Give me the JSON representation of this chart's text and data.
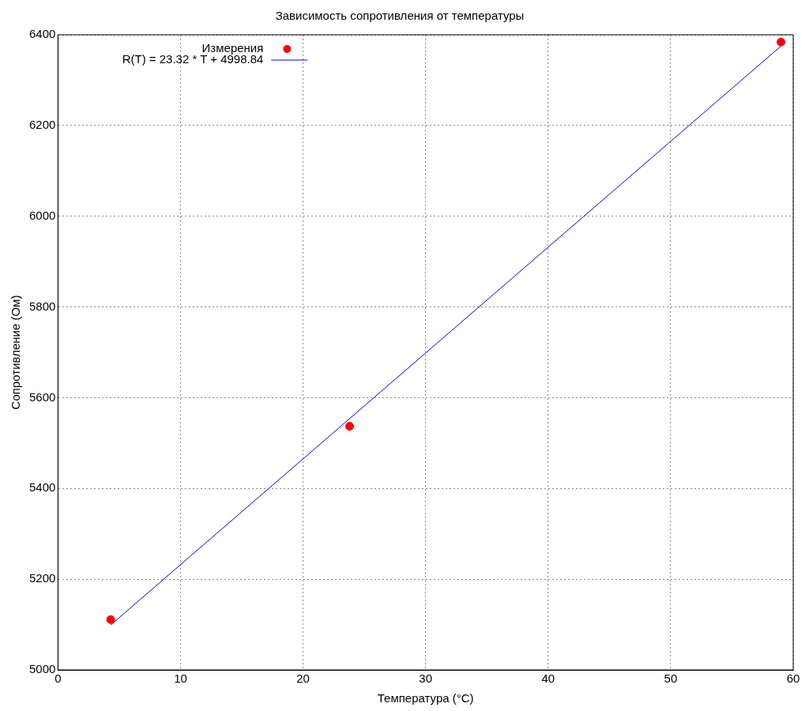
{
  "chart_data": {
    "type": "scatter",
    "title": "Зависимость сопротивления от температуры",
    "xlabel": "Температура (°C)",
    "ylabel": "Сопротивление (Ом)",
    "xlim": [
      0,
      60
    ],
    "xticks": [
      0,
      10,
      20,
      30,
      40,
      50,
      60
    ],
    "ylim": [
      5000,
      6400
    ],
    "yticks": [
      5000,
      5200,
      5400,
      5600,
      5800,
      6000,
      6200,
      6400
    ],
    "grid": true,
    "legend": "top left",
    "series": [
      {
        "name": "Измерения",
        "color": "#ff0000",
        "marker": "circle",
        "x": [
          4.3,
          23.8,
          59.0
        ],
        "values": [
          5111,
          5537,
          6384
        ]
      },
      {
        "name": "R(T) = 23.32 * T + 4998.84",
        "type": "line",
        "color": "#0000ff",
        "marker": "none",
        "x": [
          4.3,
          59.0
        ],
        "values": [
          5099,
          6375
        ]
      }
    ]
  }
}
